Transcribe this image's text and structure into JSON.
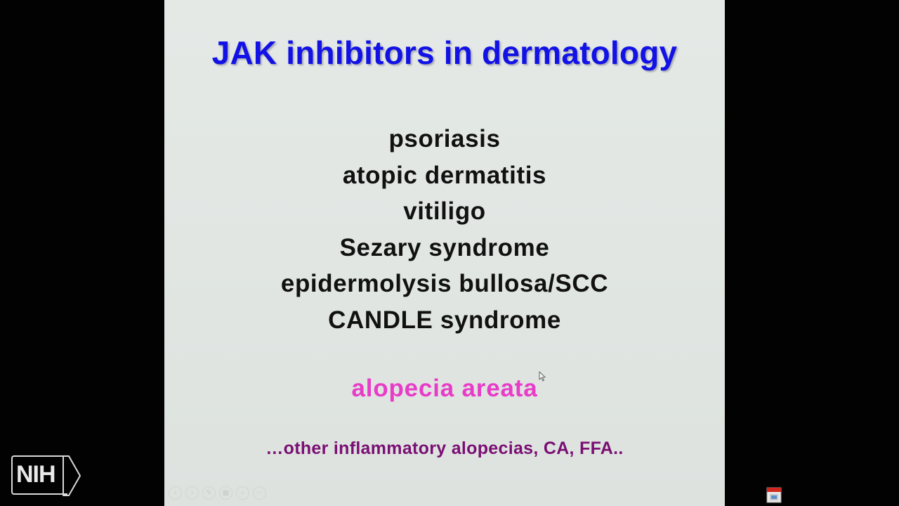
{
  "slide": {
    "title": "JAK inhibitors in dermatology",
    "conditions": [
      "psoriasis",
      "atopic dermatitis",
      "vitiligo",
      "Sezary syndrome",
      "epidermolysis bullosa/SCC",
      "CANDLE syndrome"
    ],
    "highlight": "alopecia areata",
    "footnote": "…other inflammatory alopecias, CA, FFA.."
  },
  "colors": {
    "title": "#1212e6",
    "conditions": "#111111",
    "highlight": "#e83cc8",
    "footnote": "#7a0f73",
    "slide_background": "#e2e7e4",
    "frame_background": "#020202"
  },
  "slideshow_controls": [
    {
      "icon": "previous-slide-icon",
      "glyph": "‹"
    },
    {
      "icon": "next-slide-icon",
      "glyph": "›"
    },
    {
      "icon": "pen-icon",
      "glyph": "✎"
    },
    {
      "icon": "slide-sorter-icon",
      "glyph": "▦"
    },
    {
      "icon": "zoom-icon",
      "glyph": "⌕"
    },
    {
      "icon": "more-options-icon",
      "glyph": "⋯"
    }
  ],
  "watermark": {
    "logo": "NIH",
    "icon": "nih-logo-icon"
  },
  "tray": {
    "icon": "app-tray-icon"
  }
}
